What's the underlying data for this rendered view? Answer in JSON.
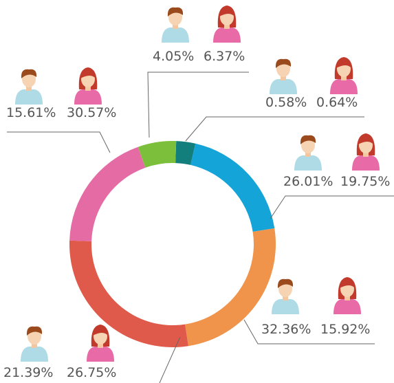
{
  "chart_data": {
    "type": "donut",
    "values": [
      3,
      19,
      25,
      28,
      19,
      6
    ],
    "colors": [
      "#127f7c",
      "#14a4d8",
      "#f0944c",
      "#e05a4b",
      "#e56ba4",
      "#7cbf3b"
    ],
    "series": [
      {
        "color": "#aedbe5",
        "values": [
          0.58,
          26.01,
          32.36,
          21.39,
          15.61,
          4.05
        ],
        "value_labels": [
          "0.58%",
          "26.01%",
          "32.36%",
          "21.39%",
          "15.61%",
          "4.05%"
        ]
      },
      {
        "color": "#e86aa6",
        "values": [
          0.64,
          19.75,
          15.92,
          26.75,
          30.57,
          6.37
        ],
        "value_labels": [
          "0.64%",
          "19.75%",
          "15.92%",
          "26.75%",
          "30.57%",
          "6.37%"
        ]
      }
    ]
  }
}
